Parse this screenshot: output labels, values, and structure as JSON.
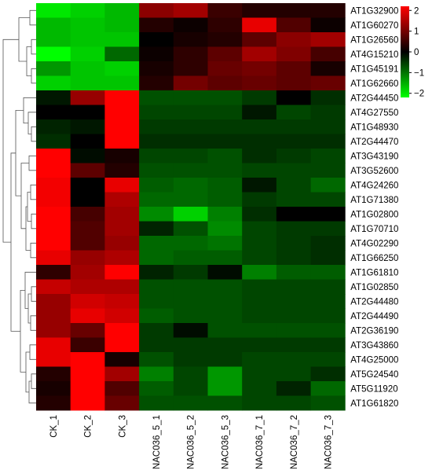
{
  "chart_data": {
    "type": "heatmap",
    "title": "",
    "rows": [
      "AT1G32900",
      "AT1G60270",
      "AT1G26560",
      "AT4G15210",
      "AT1G45191",
      "AT1G62660",
      "AT2G44450",
      "AT4G27550",
      "AT1G48930",
      "AT2G44470",
      "AT3G43190",
      "AT3G52600",
      "AT4G24260",
      "AT1G71380",
      "AT1G02800",
      "AT1G70710",
      "AT4G02290",
      "AT1G66250",
      "AT1G61810",
      "AT1G02850",
      "AT2G44480",
      "AT2G44490",
      "AT2G36190",
      "AT3G43860",
      "AT4G25000",
      "AT5G24540",
      "AT5G11920",
      "AT1G61820"
    ],
    "columns": [
      "CK_1",
      "CK_2",
      "CK_3",
      "NAC036_5_1",
      "NAC036_5_2",
      "NAC036_5_3",
      "NAC036_7_1",
      "NAC036_7_2",
      "NAC036_7_3"
    ],
    "values": [
      [
        -2.0,
        -1.8,
        -1.6,
        1.2,
        1.4,
        0.5,
        0.3,
        0.3,
        0.3
      ],
      [
        -1.6,
        -1.7,
        -1.6,
        0.3,
        0.1,
        0.4,
        2.0,
        0.7,
        0.1
      ],
      [
        -1.6,
        -1.7,
        -1.7,
        0.0,
        0.2,
        0.3,
        0.8,
        1.2,
        1.4
      ],
      [
        -2.2,
        -1.8,
        -0.9,
        0.1,
        0.4,
        0.8,
        1.4,
        1.1,
        0.6
      ],
      [
        -1.3,
        -1.7,
        -1.8,
        0.2,
        0.4,
        0.9,
        1.0,
        0.8,
        0.2
      ],
      [
        -1.8,
        -1.7,
        -1.7,
        0.3,
        1.0,
        0.8,
        0.9,
        0.8,
        0.9
      ],
      [
        -0.2,
        1.3,
        2.6,
        -0.7,
        -0.7,
        -0.7,
        -0.5,
        0.0,
        -0.4
      ],
      [
        0.0,
        0.0,
        2.6,
        -0.6,
        -0.6,
        -0.6,
        -0.2,
        -0.6,
        -0.5
      ],
      [
        -0.3,
        -0.2,
        2.6,
        -0.5,
        -0.5,
        -0.5,
        -0.5,
        -0.5,
        -0.5
      ],
      [
        -0.4,
        0.0,
        2.6,
        -0.4,
        -0.4,
        -0.4,
        -0.4,
        -0.4,
        -0.4
      ],
      [
        2.6,
        -0.1,
        0.2,
        -0.6,
        -0.6,
        -0.7,
        -0.4,
        -0.5,
        -0.6
      ],
      [
        2.6,
        0.8,
        0.3,
        -0.7,
        -0.7,
        -0.7,
        -0.6,
        -0.6,
        -0.6
      ],
      [
        2.1,
        0.0,
        2.0,
        -0.8,
        -0.9,
        -0.8,
        -0.2,
        -0.6,
        -0.9
      ],
      [
        2.1,
        0.0,
        1.5,
        -0.9,
        -0.9,
        -0.8,
        -0.5,
        -0.6,
        -0.6
      ],
      [
        2.3,
        0.6,
        1.4,
        -1.2,
        -1.8,
        -1.1,
        -0.4,
        0.0,
        0.0
      ],
      [
        2.3,
        0.7,
        1.4,
        -0.3,
        -0.7,
        -1.2,
        -0.6,
        -0.5,
        -0.5
      ],
      [
        2.3,
        0.7,
        1.3,
        -0.9,
        -0.9,
        -1.0,
        -0.6,
        -0.5,
        -0.4
      ],
      [
        2.0,
        1.3,
        1.5,
        -0.9,
        -0.8,
        -0.8,
        -0.6,
        -0.5,
        -0.4
      ],
      [
        0.4,
        1.4,
        2.2,
        -0.3,
        -0.5,
        -0.1,
        -1.1,
        -0.8,
        -0.8
      ],
      [
        1.7,
        1.5,
        1.5,
        -0.7,
        -0.7,
        -0.7,
        -0.6,
        -0.6,
        -0.6
      ],
      [
        1.3,
        1.8,
        1.7,
        -0.7,
        -0.7,
        -0.7,
        -0.6,
        -0.6,
        -0.6
      ],
      [
        1.3,
        2.0,
        1.8,
        -0.8,
        -0.7,
        -0.7,
        -0.6,
        -0.6,
        -0.6
      ],
      [
        1.3,
        0.9,
        2.2,
        -0.5,
        -0.1,
        -0.7,
        -0.7,
        -0.7,
        -0.7
      ],
      [
        2.0,
        0.5,
        2.2,
        -0.5,
        -0.5,
        -0.5,
        -0.5,
        -0.5,
        -0.5
      ],
      [
        2.0,
        2.4,
        0.2,
        -0.7,
        -0.5,
        -0.5,
        -0.6,
        -0.6,
        -0.6
      ],
      [
        0.3,
        2.4,
        1.4,
        -1.1,
        -0.6,
        -1.3,
        -0.6,
        -0.6,
        -0.4
      ],
      [
        0.2,
        2.8,
        0.7,
        -0.8,
        -0.6,
        -1.3,
        -0.6,
        -0.3,
        -0.9
      ],
      [
        0.3,
        2.8,
        0.9,
        -0.7,
        -0.7,
        -0.7,
        -0.6,
        -0.6,
        -0.7
      ]
    ],
    "color_scale": {
      "low": "#00ff00",
      "mid": "#000000",
      "high": "#ff0000",
      "min": -2.2,
      "max": 2.2
    },
    "legend": {
      "ticks": [
        "2",
        "1",
        "0",
        "−1",
        "−2"
      ],
      "tick_values": [
        2,
        1,
        0,
        -1,
        -2
      ],
      "placement": "right"
    },
    "dendrogram": "left"
  }
}
